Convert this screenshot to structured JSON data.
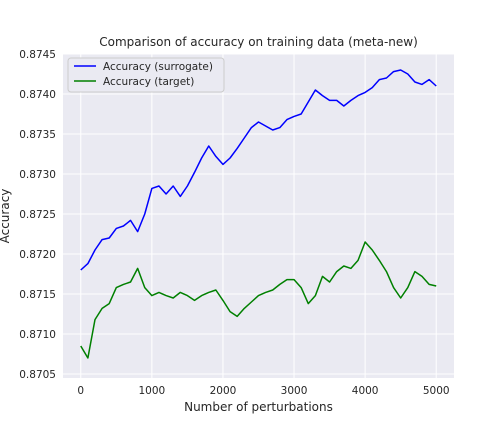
{
  "chart_data": {
    "type": "line",
    "title": "Comparison of accuracy on training data (meta-new)",
    "xlabel": "Number of perturbations",
    "ylabel": "Accuracy",
    "xlim": [
      -250,
      5250
    ],
    "ylim": [
      0.87045,
      0.8745
    ],
    "xticks": [
      0,
      1000,
      2000,
      3000,
      4000,
      5000
    ],
    "yticks": [
      0.8705,
      0.871,
      0.8715,
      0.872,
      0.8725,
      0.873,
      0.8735,
      0.874,
      0.8745
    ],
    "ytick_labels": [
      "0.8705",
      "0.8710",
      "0.8715",
      "0.8720",
      "0.8725",
      "0.8730",
      "0.8735",
      "0.8740",
      "0.8745"
    ],
    "grid": true,
    "legend_position": "upper-left",
    "background_color": "#eaeaf2",
    "series": [
      {
        "name": "Accuracy (surrogate)",
        "color": "#0000ff",
        "x": [
          0,
          100,
          200,
          300,
          400,
          500,
          600,
          700,
          800,
          900,
          1000,
          1100,
          1200,
          1300,
          1400,
          1500,
          1600,
          1700,
          1800,
          1900,
          2000,
          2100,
          2200,
          2300,
          2400,
          2500,
          2600,
          2700,
          2800,
          2900,
          3000,
          3100,
          3200,
          3300,
          3400,
          3500,
          3600,
          3700,
          3800,
          3900,
          4000,
          4100,
          4200,
          4300,
          4400,
          4500,
          4600,
          4700,
          4800,
          4900,
          5000
        ],
        "y": [
          0.8718,
          0.87188,
          0.87205,
          0.87218,
          0.8722,
          0.87232,
          0.87235,
          0.87242,
          0.87228,
          0.8725,
          0.87282,
          0.87285,
          0.87275,
          0.87285,
          0.87272,
          0.87285,
          0.87302,
          0.8732,
          0.87335,
          0.87322,
          0.87312,
          0.8732,
          0.87332,
          0.87345,
          0.87358,
          0.87365,
          0.8736,
          0.87355,
          0.87358,
          0.87368,
          0.87372,
          0.87375,
          0.8739,
          0.87405,
          0.87398,
          0.87392,
          0.87392,
          0.87385,
          0.87392,
          0.87398,
          0.87402,
          0.87408,
          0.87418,
          0.8742,
          0.87428,
          0.8743,
          0.87425,
          0.87415,
          0.87412,
          0.87418,
          0.8741
        ]
      },
      {
        "name": "Accuracy (target)",
        "color": "#008000",
        "x": [
          0,
          100,
          200,
          300,
          400,
          500,
          600,
          700,
          800,
          900,
          1000,
          1100,
          1200,
          1300,
          1400,
          1500,
          1600,
          1700,
          1800,
          1900,
          2000,
          2100,
          2200,
          2300,
          2400,
          2500,
          2600,
          2700,
          2800,
          2900,
          3000,
          3100,
          3200,
          3300,
          3400,
          3500,
          3600,
          3700,
          3800,
          3900,
          4000,
          4100,
          4200,
          4300,
          4400,
          4500,
          4600,
          4700,
          4800,
          4900,
          5000
        ],
        "y": [
          0.87085,
          0.8707,
          0.87118,
          0.87132,
          0.87138,
          0.87158,
          0.87162,
          0.87165,
          0.87182,
          0.87158,
          0.87148,
          0.87152,
          0.87148,
          0.87145,
          0.87152,
          0.87148,
          0.87142,
          0.87148,
          0.87152,
          0.87155,
          0.87142,
          0.87128,
          0.87122,
          0.87132,
          0.8714,
          0.87148,
          0.87152,
          0.87155,
          0.87162,
          0.87168,
          0.87168,
          0.87158,
          0.87138,
          0.87148,
          0.87172,
          0.87165,
          0.87178,
          0.87185,
          0.87182,
          0.87192,
          0.87215,
          0.87205,
          0.87192,
          0.87178,
          0.87158,
          0.87145,
          0.87158,
          0.87178,
          0.87172,
          0.87162,
          0.8716
        ]
      }
    ]
  }
}
